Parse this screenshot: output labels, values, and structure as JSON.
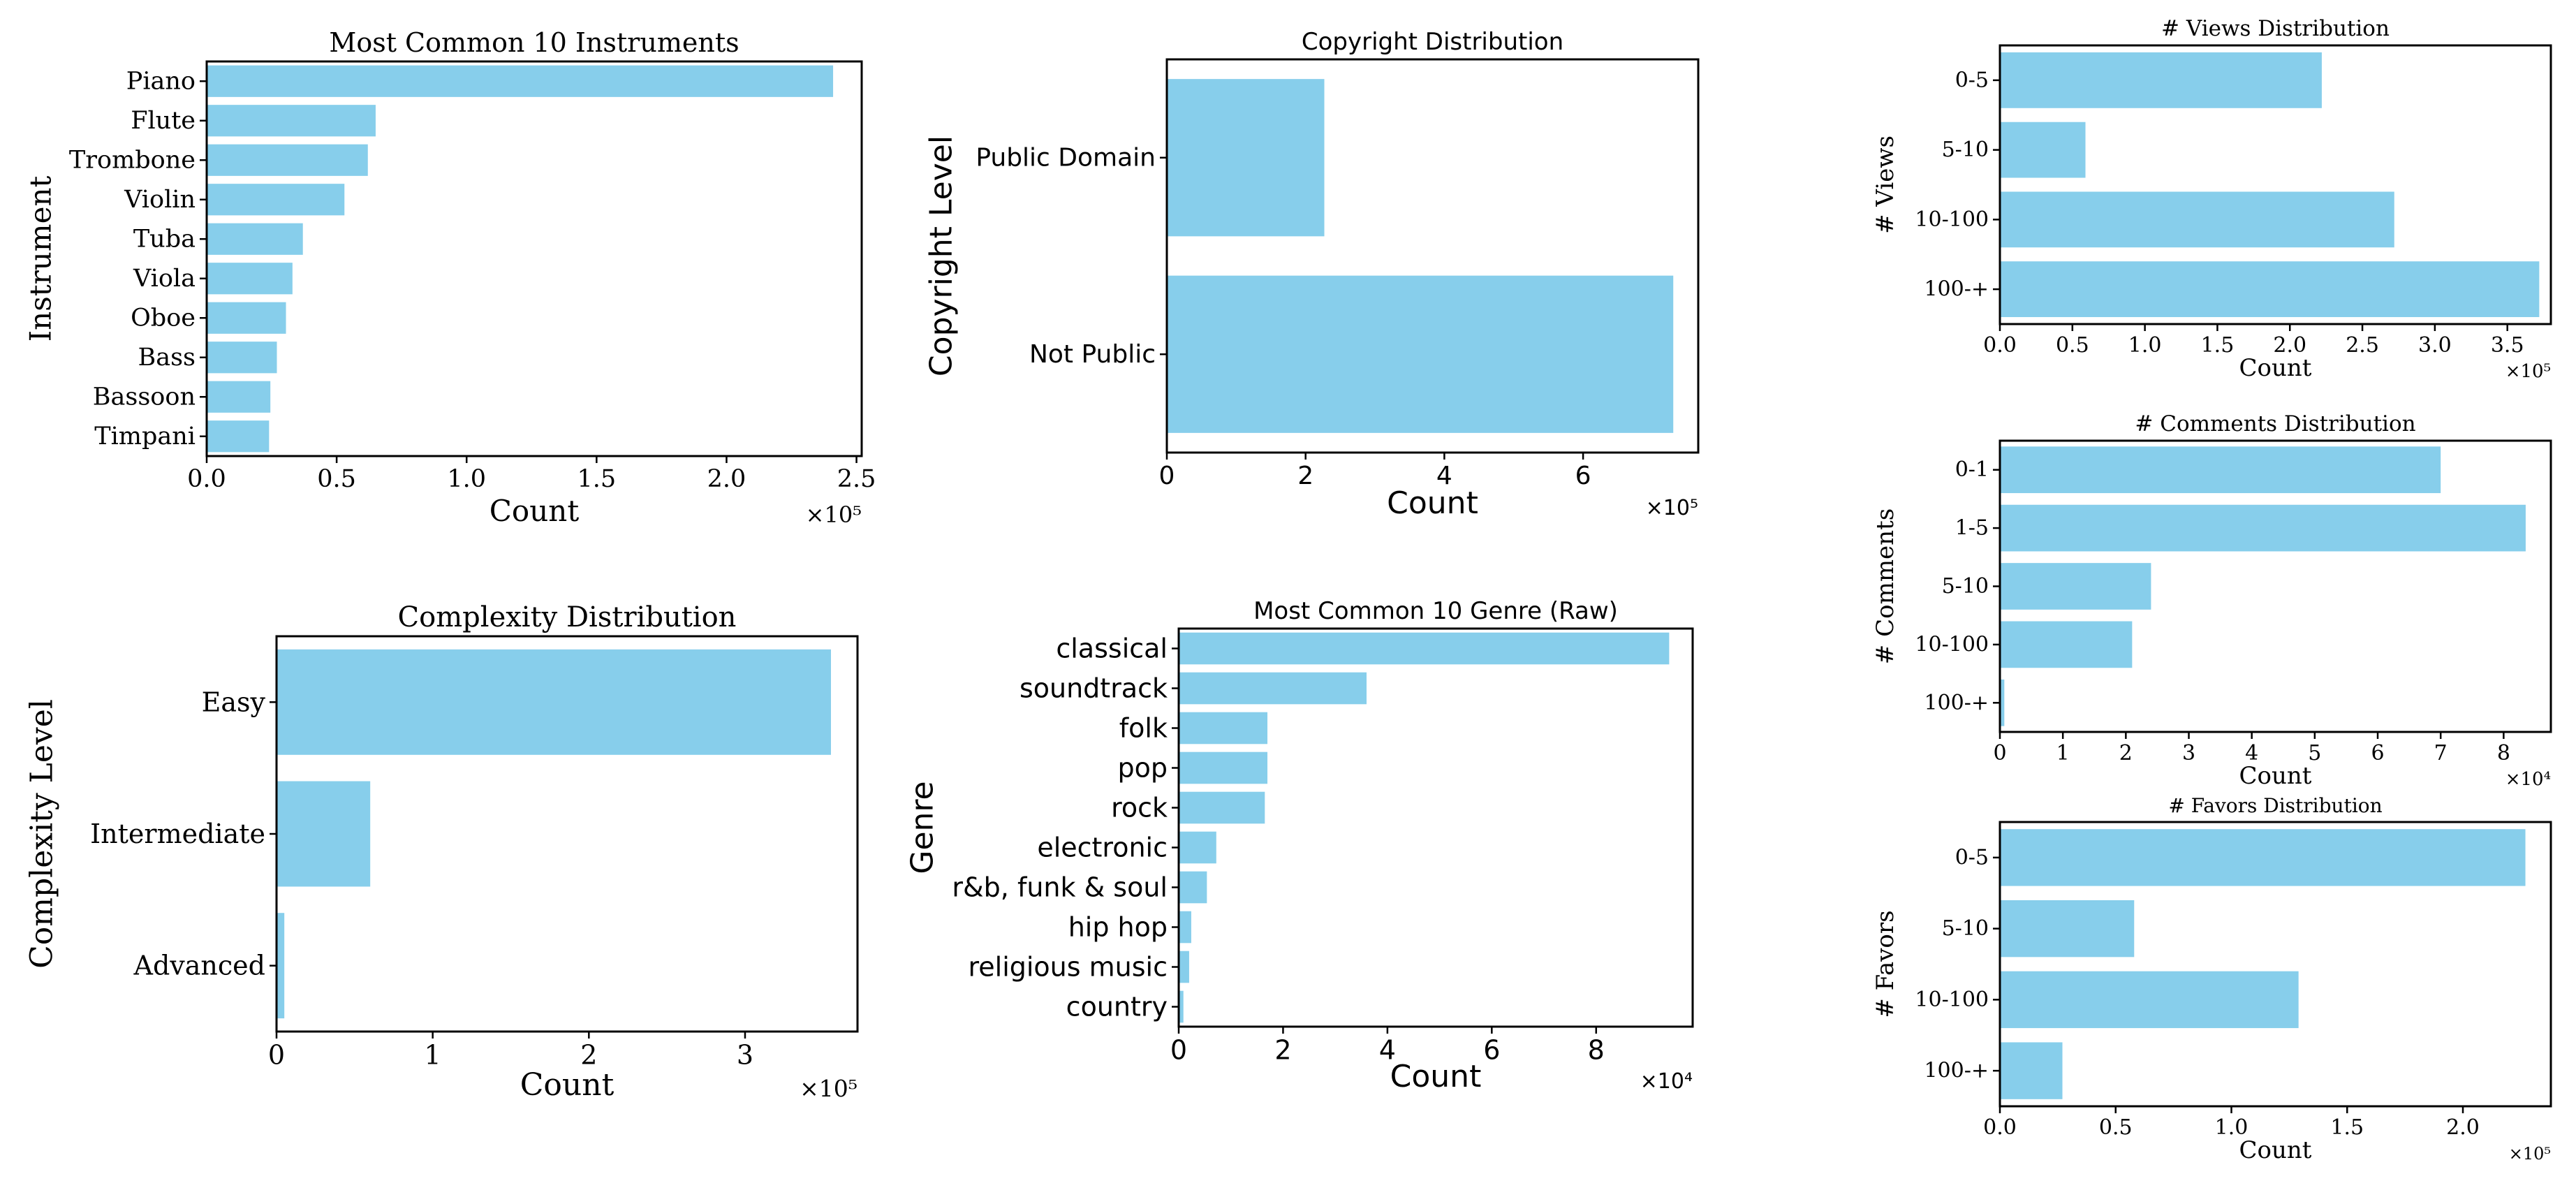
{
  "chart_data": [
    {
      "id": "instruments",
      "type": "bar",
      "orientation": "horizontal",
      "title": "Most Common 10 Instruments",
      "xlabel": "Count",
      "ylabel": "Instrument",
      "offset_text": "×10⁵",
      "categories": [
        "Piano",
        "Flute",
        "Trombone",
        "Violin",
        "Tuba",
        "Viola",
        "Oboe",
        "Bass",
        "Bassoon",
        "Timpani"
      ],
      "values": [
        241000,
        65000,
        62000,
        53000,
        37000,
        33000,
        30500,
        27000,
        24500,
        24000
      ],
      "xlim": [
        0,
        252000
      ],
      "xticks": [
        0,
        50000,
        100000,
        150000,
        200000,
        250000
      ],
      "xtick_labels": [
        "0.0",
        "0.5",
        "1.0",
        "1.5",
        "2.0",
        "2.5"
      ],
      "font": "serif"
    },
    {
      "id": "copyright",
      "type": "bar",
      "orientation": "horizontal",
      "title": "Copyright Distribution",
      "xlabel": "Count",
      "ylabel": "Copyright Level",
      "offset_text": "×10⁵",
      "categories": [
        "Public Domain",
        "Not Public"
      ],
      "values": [
        227000,
        730000
      ],
      "xlim": [
        0,
        766000
      ],
      "xticks": [
        0,
        200000,
        400000,
        600000
      ],
      "xtick_labels": [
        "0",
        "2",
        "4",
        "6"
      ],
      "font": "sans"
    },
    {
      "id": "views",
      "type": "bar",
      "orientation": "horizontal",
      "title": "# Views Distribution",
      "xlabel": "Count",
      "ylabel": "# Views",
      "offset_text": "×10⁵",
      "categories": [
        "0-5",
        "5-10",
        "10-100",
        "100-+"
      ],
      "values": [
        222000,
        59000,
        272000,
        372000
      ],
      "xlim": [
        0,
        380000
      ],
      "xticks": [
        0,
        50000,
        100000,
        150000,
        200000,
        250000,
        300000,
        350000
      ],
      "xtick_labels": [
        "0.0",
        "0.5",
        "1.0",
        "1.5",
        "2.0",
        "2.5",
        "3.0",
        "3.5"
      ],
      "font": "serif"
    },
    {
      "id": "comments",
      "type": "bar",
      "orientation": "horizontal",
      "title": "# Comments Distribution",
      "xlabel": "Count",
      "ylabel": "# Comments",
      "offset_text": "×10⁴",
      "categories": [
        "0-1",
        "1-5",
        "5-10",
        "10-100",
        "100-+"
      ],
      "values": [
        70000,
        83500,
        24000,
        21000,
        700
      ],
      "xlim": [
        0,
        87500
      ],
      "xticks": [
        0,
        10000,
        20000,
        30000,
        40000,
        50000,
        60000,
        70000,
        80000
      ],
      "xtick_labels": [
        "0",
        "1",
        "2",
        "3",
        "4",
        "5",
        "6",
        "7",
        "8"
      ],
      "font": "serif"
    },
    {
      "id": "complexity",
      "type": "bar",
      "orientation": "horizontal",
      "title": "Complexity Distribution",
      "xlabel": "Count",
      "ylabel": "Complexity Level",
      "offset_text": "×10⁵",
      "categories": [
        "Easy",
        "Intermediate",
        "Advanced"
      ],
      "values": [
        355000,
        60000,
        5000
      ],
      "xlim": [
        0,
        372000
      ],
      "xticks": [
        0,
        100000,
        200000,
        300000
      ],
      "xtick_labels": [
        "0",
        "1",
        "2",
        "3"
      ],
      "font": "serif"
    },
    {
      "id": "genre",
      "type": "bar",
      "orientation": "horizontal",
      "title": "Most Common 10 Genre (Raw)",
      "xlabel": "Count",
      "ylabel": "Genre",
      "offset_text": "×10⁴",
      "categories": [
        "classical",
        "soundtrack",
        "folk",
        "pop",
        "rock",
        "electronic",
        "r&b, funk & soul",
        "hip hop",
        "religious music",
        "country"
      ],
      "values": [
        94000,
        36000,
        17000,
        17000,
        16500,
        7200,
        5400,
        2400,
        2000,
        900
      ],
      "xlim": [
        0,
        98500
      ],
      "xticks": [
        0,
        20000,
        40000,
        60000,
        80000
      ],
      "xtick_labels": [
        "0",
        "2",
        "4",
        "6",
        "8"
      ],
      "font": "sans"
    },
    {
      "id": "favors",
      "type": "bar",
      "orientation": "horizontal",
      "title": "# Favors Distribution",
      "xlabel": "Count",
      "ylabel": "# Favors",
      "offset_text": "×10⁵",
      "categories": [
        "0-5",
        "5-10",
        "10-100",
        "100-+"
      ],
      "values": [
        227000,
        58000,
        129000,
        27000
      ],
      "xlim": [
        0,
        238000
      ],
      "xticks": [
        0,
        50000,
        100000,
        150000,
        200000
      ],
      "xtick_labels": [
        "0.0",
        "0.5",
        "1.0",
        "1.5",
        "2.0"
      ],
      "font": "serif"
    }
  ]
}
